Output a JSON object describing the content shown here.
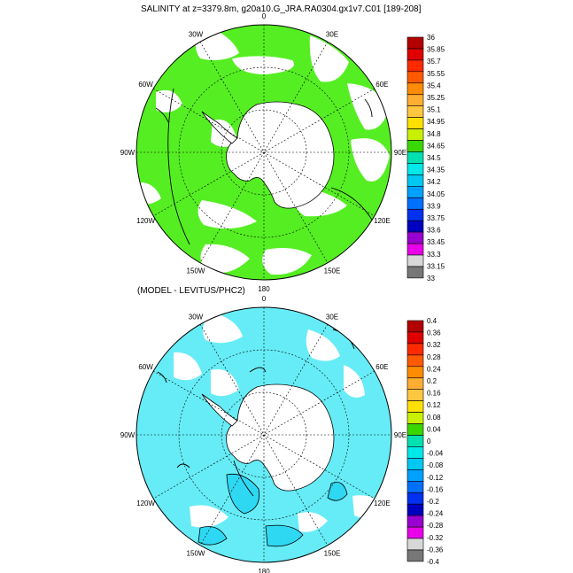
{
  "panel1": {
    "title": "SALINITY at z=3379.8m, g20a10.G_JRA.RA0304.gx1v7.C01 [189-208]",
    "lon_labels": [
      "0",
      "30E",
      "60E",
      "90E",
      "120E",
      "150E",
      "180",
      "150W",
      "120W",
      "90W",
      "60W",
      "30W"
    ],
    "colorbar": {
      "labels": [
        "36",
        "35.85",
        "35.7",
        "35.55",
        "35.4",
        "35.25",
        "35.1",
        "34.95",
        "34.8",
        "34.65",
        "34.5",
        "34.35",
        "34.2",
        "34.05",
        "33.9",
        "33.75",
        "33.6",
        "33.45",
        "33.3",
        "33.15",
        "33"
      ],
      "colors": [
        "#b30000",
        "#e00000",
        "#ff2a00",
        "#ff5a00",
        "#ff8c00",
        "#ffae33",
        "#ffc640",
        "#ffe000",
        "#c8f000",
        "#3ad600",
        "#00e0b0",
        "#00e8e8",
        "#00c8f0",
        "#00a0ff",
        "#0070ff",
        "#0030f0",
        "#0000c0",
        "#9a00d0",
        "#e800e8",
        "#d8d8d8",
        "#777777"
      ]
    }
  },
  "panel2": {
    "title": "(MODEL - LEVITUS/PHC2)",
    "lon_labels": [
      "0",
      "30E",
      "60E",
      "90E",
      "120E",
      "150E",
      "180",
      "150W",
      "120W",
      "90W",
      "60W",
      "30W"
    ],
    "colorbar": {
      "labels": [
        "0.4",
        "0.36",
        "0.32",
        "0.28",
        "0.24",
        "0.2",
        "0.16",
        "0.12",
        "0.08",
        "0.04",
        "0",
        "-0.04",
        "-0.08",
        "-0.12",
        "-0.16",
        "-0.2",
        "-0.24",
        "-0.28",
        "-0.32",
        "-0.36",
        "-0.4"
      ],
      "colors": [
        "#b30000",
        "#e00000",
        "#ff2a00",
        "#ff5a00",
        "#ff8c00",
        "#ffae33",
        "#ffc640",
        "#ffe000",
        "#c8f000",
        "#3ad600",
        "#00e0b0",
        "#00e8e8",
        "#00c8f0",
        "#00a0ff",
        "#0070ff",
        "#0030f0",
        "#0000c0",
        "#9a00d0",
        "#e800e8",
        "#d8d8d8",
        "#777777"
      ]
    }
  },
  "map": {
    "land_color": "#ffffff",
    "panel1_fill_color": "#55ee22",
    "panel2_fill_color": "#66ecf6",
    "outline_color": "#000000"
  }
}
